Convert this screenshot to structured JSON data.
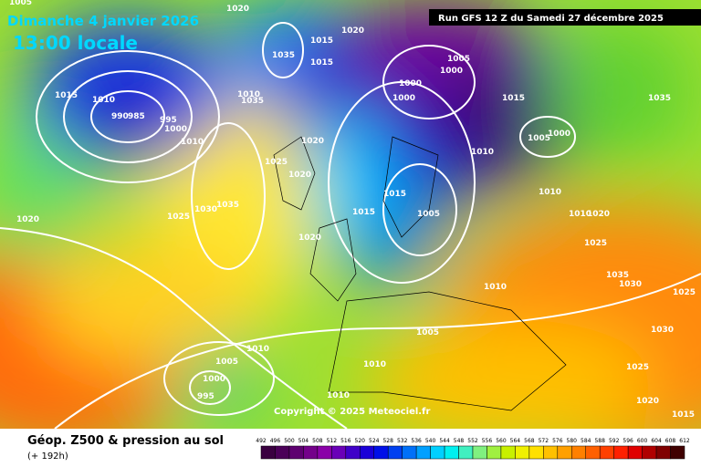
{
  "header": {
    "date": "Dimanche 4 janvier 2026",
    "time": "13:00 locale",
    "run": "Run GFS 12 Z du Samedi 27 décembre 2025"
  },
  "map": {
    "copyright": "Copyright © 2025 Meteociel.fr",
    "pressure_labels": [
      "1005",
      "1020",
      "1020",
      "1015",
      "1035",
      "1015",
      "1005",
      "1000",
      "1000",
      "1000",
      "1015",
      "1035",
      "1015",
      "1010",
      "990",
      "985",
      "995",
      "1000",
      "1010",
      "1035",
      "1010",
      "1020",
      "1010",
      "1005",
      "1000",
      "1025",
      "1020",
      "1035",
      "1030",
      "1020",
      "1025",
      "1015",
      "1015",
      "1005",
      "1010",
      "1010",
      "1020",
      "1020",
      "1025",
      "1035",
      "1030",
      "1010",
      "1025",
      "1005",
      "1030",
      "1010",
      "1005",
      "1010",
      "1025",
      "1000",
      "995",
      "1010",
      "1020",
      "1015"
    ]
  },
  "legend": {
    "title": "Géop. Z500 & pression au sol",
    "subtitle": "(+ 192h)",
    "ticks": [
      "492",
      "496",
      "500",
      "504",
      "508",
      "512",
      "516",
      "520",
      "524",
      "528",
      "532",
      "536",
      "540",
      "544",
      "548",
      "552",
      "556",
      "560",
      "564",
      "568",
      "572",
      "576",
      "580",
      "584",
      "588",
      "592",
      "596",
      "600",
      "604",
      "608",
      "612"
    ]
  }
}
